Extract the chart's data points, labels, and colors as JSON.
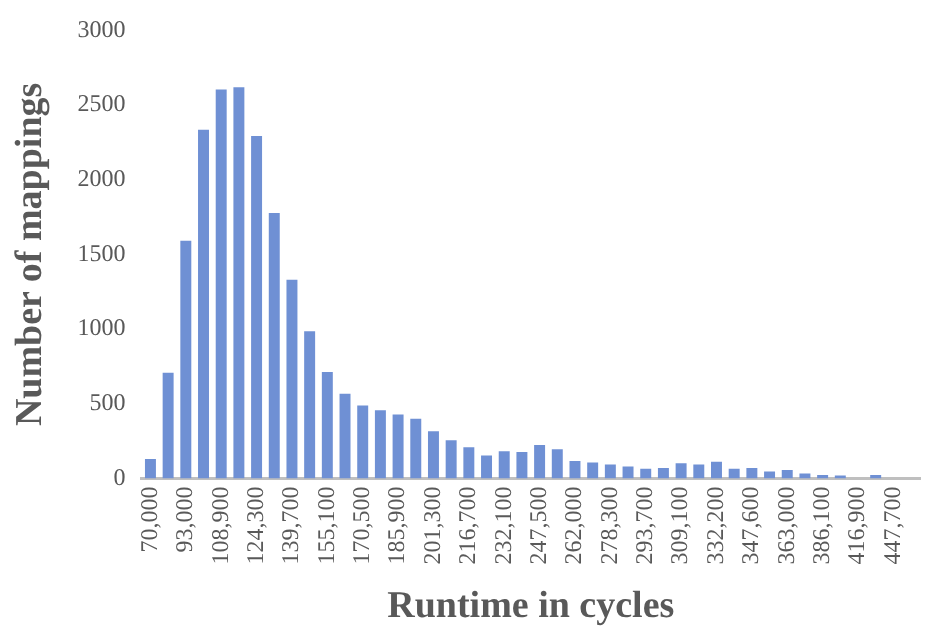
{
  "chart_data": {
    "type": "bar",
    "xlabel": "Runtime in cycles",
    "ylabel": "Number of mappings",
    "categories": [
      "70,000",
      null,
      "93,000",
      null,
      "108,900",
      null,
      "124,300",
      null,
      "139,700",
      null,
      "155,100",
      null,
      "170,500",
      null,
      "185,900",
      null,
      "201,300",
      null,
      "216,700",
      null,
      "232,100",
      null,
      "247,500",
      null,
      "262,000",
      null,
      "278,300",
      null,
      "293,700",
      null,
      "309,100",
      null,
      "332,200",
      null,
      "347,600",
      null,
      "363,000",
      null,
      "386,100",
      null,
      "416,900",
      null,
      "447,700",
      null
    ],
    "values": [
      130,
      707,
      1591,
      2335,
      2605,
      2619,
      2293,
      1777,
      1330,
      986,
      712,
      567,
      488,
      456,
      428,
      400,
      316,
      256,
      209,
      153,
      181,
      177,
      223,
      195,
      116,
      107,
      93,
      79,
      65,
      70,
      102,
      93,
      112,
      65,
      70,
      47,
      56,
      33,
      23,
      19,
      0,
      23,
      0,
      0
    ],
    "color": "#6f90d4",
    "ylim": [
      0,
      3000
    ],
    "yticks": [
      0,
      500,
      1000,
      1500,
      2000,
      2500,
      3000
    ],
    "grid": false,
    "legend": false
  }
}
